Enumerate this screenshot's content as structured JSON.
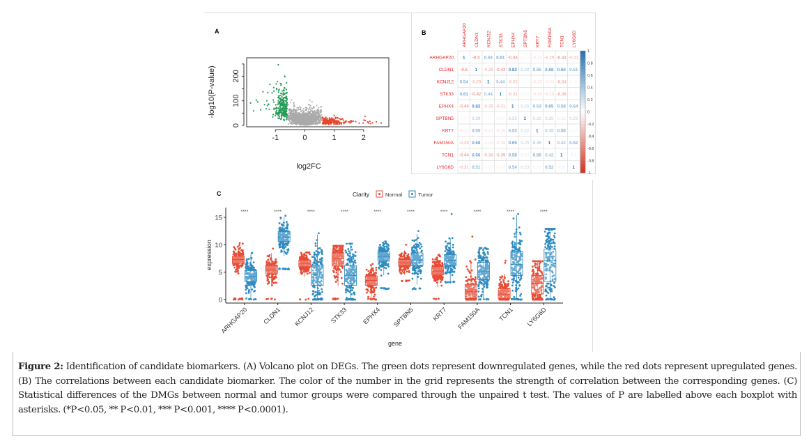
{
  "figure": {
    "panel_labels": {
      "a": "A",
      "b": "B",
      "c": "C"
    },
    "caption": {
      "label": "Figure 2:",
      "text": " Identification of candidate biomarkers. (A) Volcano plot on DEGs. The green dots represent downregulated genes, while the red dots represent upregulated genes. (B) The correlations between each candidate biomarker. The color of the number in the grid represents the strength of correlation between the corresponding genes. (C) Statistical differences of the DMGs between normal and tumor groups were compared through the unpaired t test. The values of P are labelled above each boxplot with asterisks. (*P<0.05, ** P<0.01, *** P<0.001, **** P<0.0001)."
    }
  },
  "chart_data": [
    {
      "panel": "A",
      "type": "scatter",
      "xlabel": "log2FC",
      "ylabel": "-log10(P-value)",
      "xlim": [
        -1.98,
        2.86
      ],
      "ylim": [
        0,
        275
      ],
      "xticks": [
        -1,
        0,
        1,
        2
      ],
      "yticks": [
        0,
        50,
        100,
        150,
        200,
        250
      ],
      "ytick_labels": [
        "0",
        "",
        "100",
        "",
        "200",
        ""
      ],
      "fc_threshold_down": -0.58,
      "fc_threshold_up": 0.58,
      "colors": {
        "down": "#239B56",
        "ns": "#AAAAAA",
        "up": "#E8462C"
      },
      "grid": false
    },
    {
      "panel": "B",
      "type": "heatmap",
      "genes": [
        "ARHGAP20",
        "CLDN1",
        "KCNJ12",
        "STK33",
        "EPHX4",
        "SPTBN5",
        "KRT7",
        "FAM150A",
        "TCN1",
        "LY6G6D"
      ],
      "matrix": [
        [
          1,
          -0.5,
          0.54,
          0.61,
          -0.44,
          -0.04,
          -0.13,
          -0.29,
          -0.44,
          -0.31
        ],
        [
          -0.5,
          1,
          -0.29,
          -0.42,
          0.82,
          0.29,
          0.55,
          0.68,
          0.66,
          0.51
        ],
        [
          0.54,
          -0.29,
          1,
          0.44,
          -0.26,
          0.02,
          -0.12,
          -0.09,
          -0.34,
          -0.05
        ],
        [
          0.61,
          -0.42,
          0.44,
          1,
          -0.31,
          0.06,
          -0.16,
          -0.18,
          -0.39,
          -0.06
        ],
        [
          -0.44,
          0.82,
          -0.26,
          -0.31,
          1,
          0.25,
          0.53,
          0.65,
          0.58,
          0.54
        ],
        [
          -0.04,
          0.29,
          0.02,
          0.06,
          0.25,
          1,
          0.22,
          0.25,
          0.12,
          0.23
        ],
        [
          -0.13,
          0.55,
          -0.12,
          -0.16,
          0.53,
          0.22,
          1,
          0.35,
          0.56,
          0.06
        ],
        [
          -0.29,
          0.68,
          -0.09,
          -0.18,
          0.65,
          0.25,
          0.35,
          1,
          0.42,
          0.52
        ],
        [
          -0.44,
          0.66,
          -0.34,
          -0.39,
          0.58,
          0.12,
          0.56,
          0.42,
          1,
          0.1
        ],
        [
          -0.31,
          0.51,
          -0.05,
          -0.06,
          0.54,
          0.23,
          0.06,
          0.52,
          0.1,
          1
        ]
      ],
      "colorbar_ticks": [
        1,
        0.8,
        0.6,
        0.4,
        0.2,
        0,
        -0.2,
        -0.4,
        -0.6,
        -0.8,
        -1
      ],
      "colorscale": {
        "neg": "#D7301F",
        "mid": "#FFFFFF",
        "pos": "#2171B5"
      },
      "label_color": "#E8262A"
    },
    {
      "panel": "C",
      "type": "box",
      "xlabel": "gene",
      "ylabel": "expression",
      "ylim": [
        0,
        16
      ],
      "yticks": [
        0,
        5,
        10,
        15
      ],
      "legend": {
        "title": "Clarity",
        "position": "top",
        "entries": [
          "Normal",
          "Tumor"
        ]
      },
      "colors": {
        "Normal": "#E64B35",
        "Tumor": "#2E8BC0"
      },
      "categories": [
        "ARHGAP20",
        "CLDN1",
        "KCNJ12",
        "STK33",
        "EPHX4",
        "SPTBN5",
        "KRT7",
        "FAM150A",
        "TCN1",
        "LY6G6D"
      ],
      "significance": [
        "****",
        "****",
        "****",
        "****",
        "****",
        "****",
        "****",
        "****",
        "****",
        "****"
      ],
      "series": [
        {
          "name": "Normal",
          "q1": [
            6.6,
            4.7,
            6.0,
            6.1,
            2.6,
            6.2,
            4.5,
            0.2,
            0.2,
            1.0
          ],
          "median": [
            7.3,
            5.4,
            6.6,
            7.5,
            3.5,
            6.7,
            5.2,
            1.5,
            1.0,
            3.0
          ],
          "q3": [
            7.9,
            6.2,
            7.2,
            8.5,
            4.3,
            7.3,
            6.0,
            2.8,
            2.0,
            4.4
          ],
          "min": [
            0,
            0,
            0,
            0,
            0,
            3.3,
            0,
            0,
            0,
            0
          ],
          "max": [
            10.3,
            9.3,
            8.6,
            9.8,
            6.5,
            10.0,
            8.2,
            11.5,
            7.1,
            7.0
          ]
        },
        {
          "name": "Tumor",
          "q1": [
            3.3,
            10.6,
            2.6,
            2.6,
            7.0,
            6.2,
            6.2,
            3.7,
            4.4,
            3.3
          ],
          "median": [
            4.2,
            11.4,
            4.5,
            4.4,
            7.9,
            7.2,
            7.2,
            5.2,
            6.4,
            7.2
          ],
          "q3": [
            5.3,
            12.4,
            6.3,
            6.2,
            8.7,
            8.5,
            8.2,
            6.8,
            8.8,
            9.2
          ],
          "min": [
            0,
            5.5,
            0,
            0,
            1.9,
            1.9,
            3.1,
            0,
            0,
            0
          ],
          "max": [
            8.5,
            15.3,
            12.1,
            10.2,
            10.6,
            12.5,
            15.6,
            9.4,
            15.6,
            12.9
          ]
        }
      ]
    }
  ]
}
